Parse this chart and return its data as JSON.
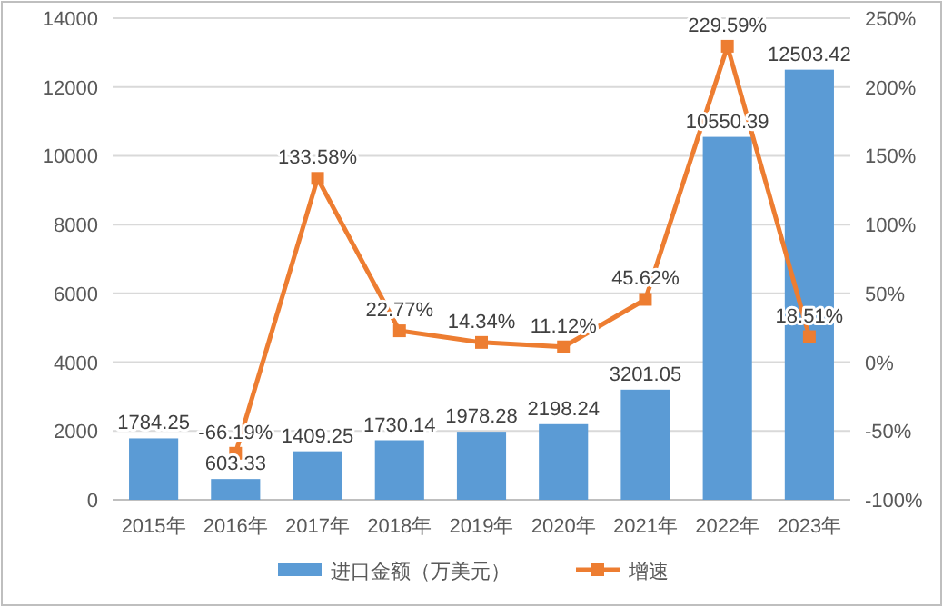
{
  "chart_data": {
    "type": "bar",
    "categories": [
      "2015年",
      "2016年",
      "2017年",
      "2018年",
      "2019年",
      "2020年",
      "2021年",
      "2022年",
      "2023年"
    ],
    "series": [
      {
        "name": "进口金额（万美元）",
        "color": "#5b9bd5",
        "values": [
          1784.25,
          603.33,
          1409.25,
          1730.14,
          1978.28,
          2198.24,
          3201.05,
          10550.39,
          12503.42
        ],
        "value_labels": [
          "1784.25",
          "603.33",
          "1409.25",
          "1730.14",
          "1978.28",
          "2198.24",
          "3201.05",
          "10550.39",
          "12503.42"
        ]
      },
      {
        "name": "增速",
        "type": "line",
        "axis": "y2",
        "color": "#ed7d31",
        "marker": "square",
        "values": [
          null,
          -66.19,
          133.58,
          22.77,
          14.34,
          11.12,
          45.62,
          229.59,
          18.51
        ],
        "value_labels": [
          null,
          "-66.19%",
          "133.58%",
          "22.77%",
          "14.34%",
          "11.12%",
          "45.62%",
          "229.59%",
          "18.51%"
        ]
      }
    ],
    "ylim": [
      0,
      14000
    ],
    "yticks": [
      0,
      2000,
      4000,
      6000,
      8000,
      10000,
      12000,
      14000
    ],
    "y2lim": [
      -100,
      250
    ],
    "y2ticks": [
      {
        "value": -100,
        "label": "-100%"
      },
      {
        "value": -50,
        "label": "-50%"
      },
      {
        "value": 0,
        "label": "0%"
      },
      {
        "value": 50,
        "label": "50%"
      },
      {
        "value": 100,
        "label": "100%"
      },
      {
        "value": 150,
        "label": "150%"
      },
      {
        "value": 200,
        "label": "200%"
      },
      {
        "value": 250,
        "label": "250%"
      }
    ],
    "grid": "y",
    "legend": "bottom"
  }
}
